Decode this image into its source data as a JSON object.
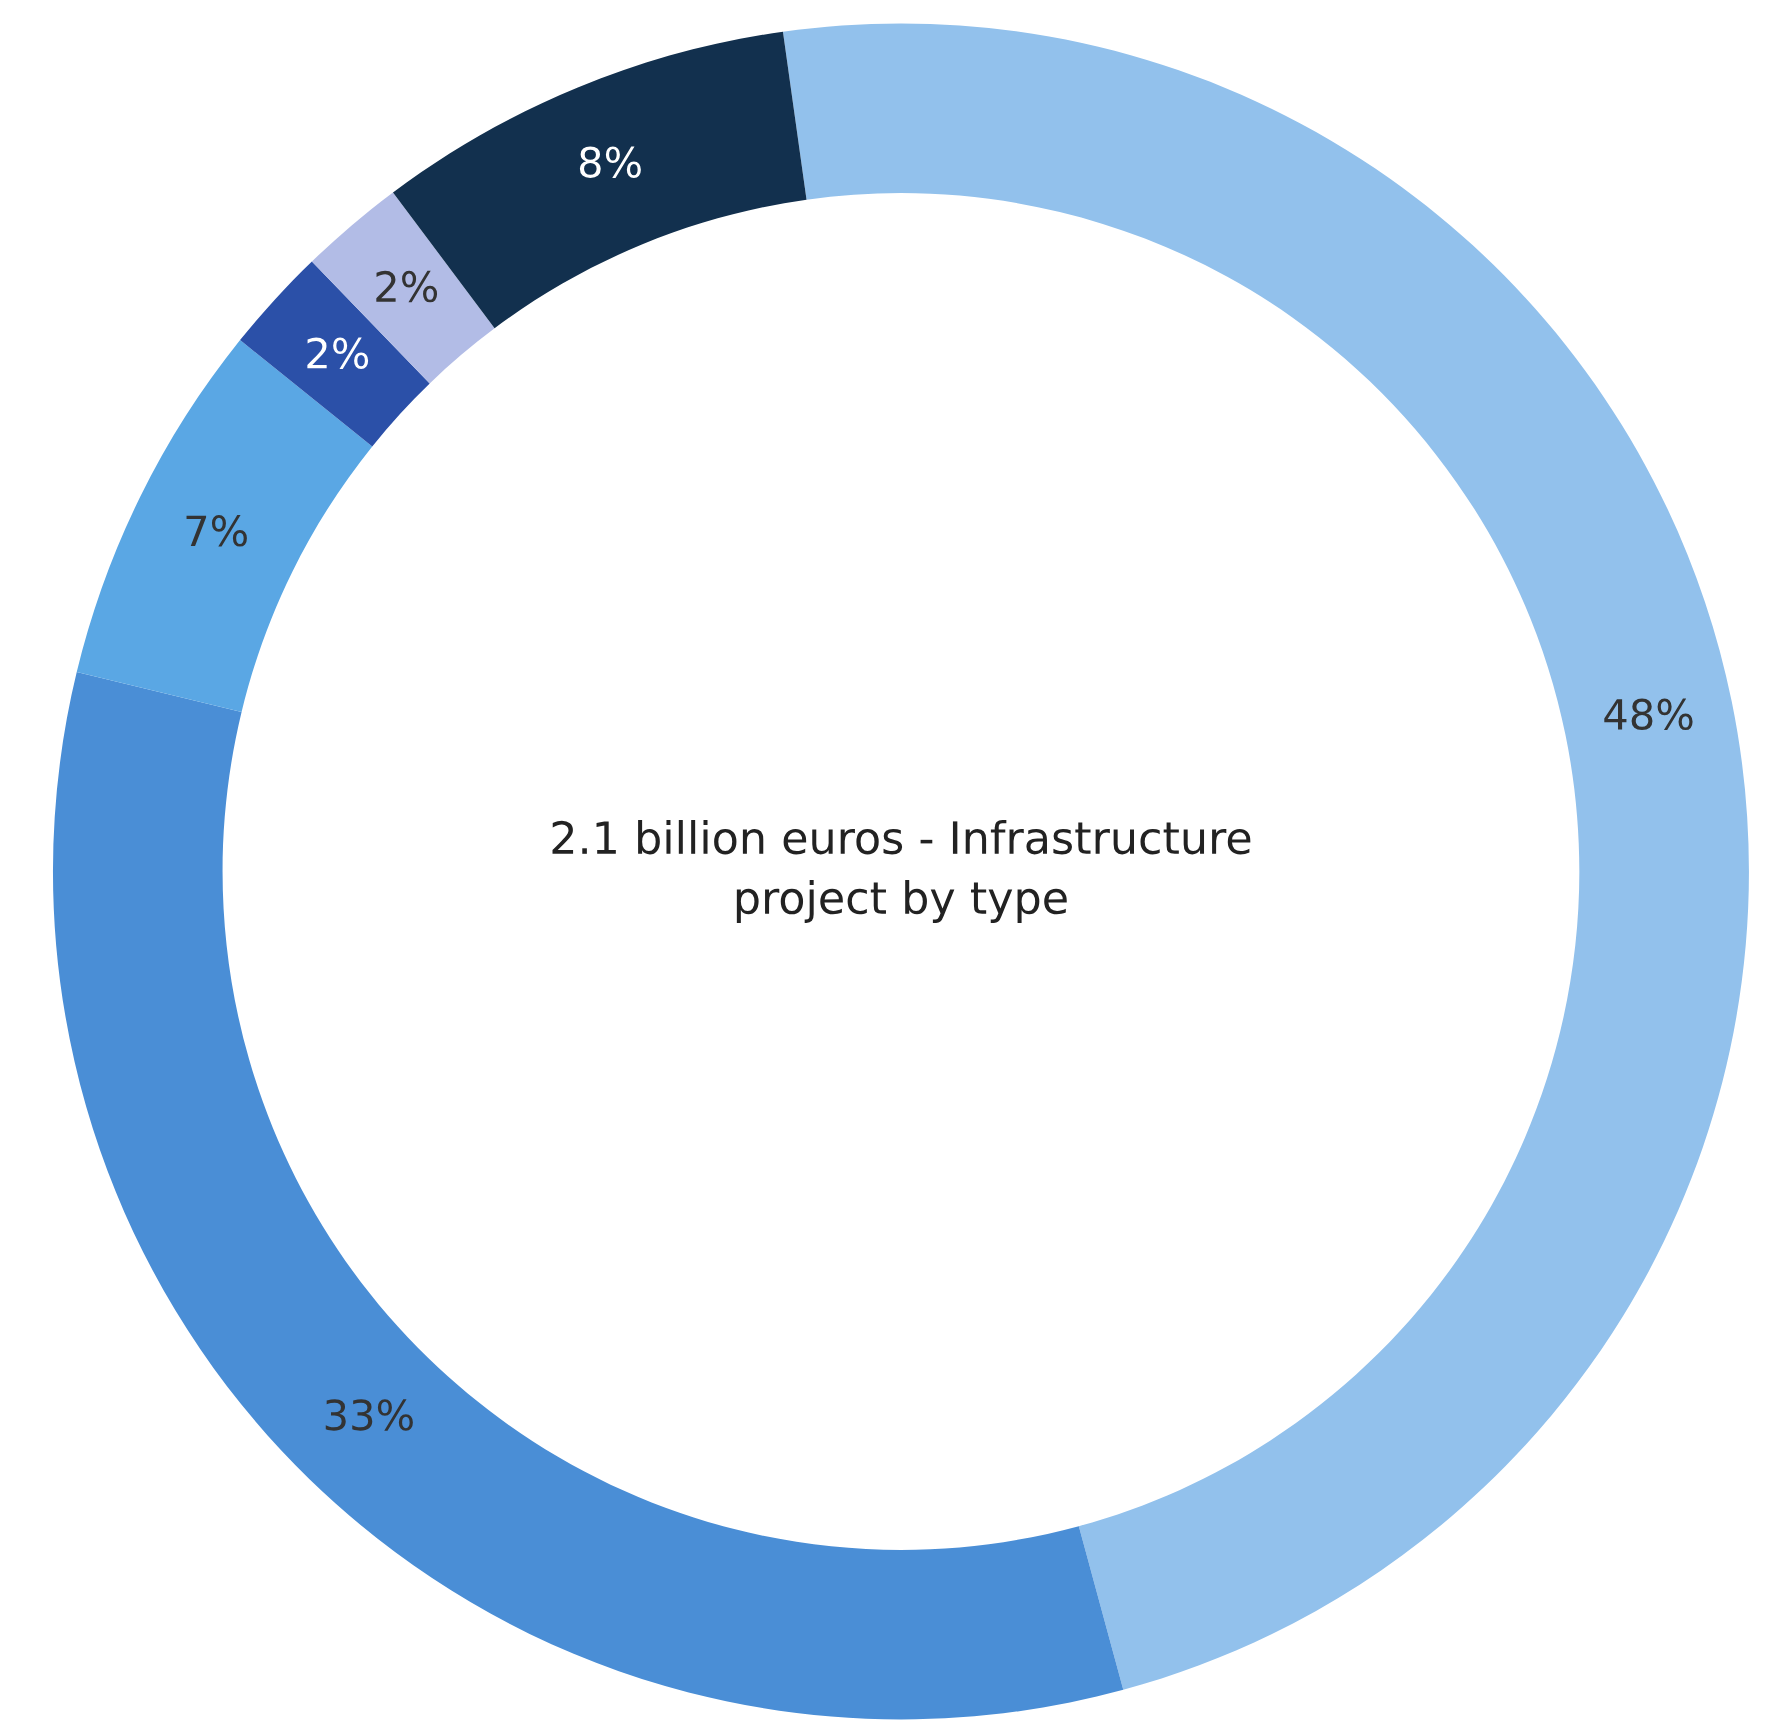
{
  "chart_data": {
    "type": "donut",
    "title": "2.1 billion euros - Infrastructure project by type",
    "categories": [
      null,
      null,
      null,
      null,
      null,
      null
    ],
    "values": [
      48,
      33,
      7,
      2,
      2,
      8
    ],
    "colors": [
      "#92c1ec",
      "#4a8ed6",
      "#5aa7e4",
      "#2b50a8",
      "#b2bce6",
      "#12304e"
    ],
    "value_labels": [
      "48%",
      "33%",
      "7%",
      "2%",
      "2%",
      "8%"
    ]
  }
}
